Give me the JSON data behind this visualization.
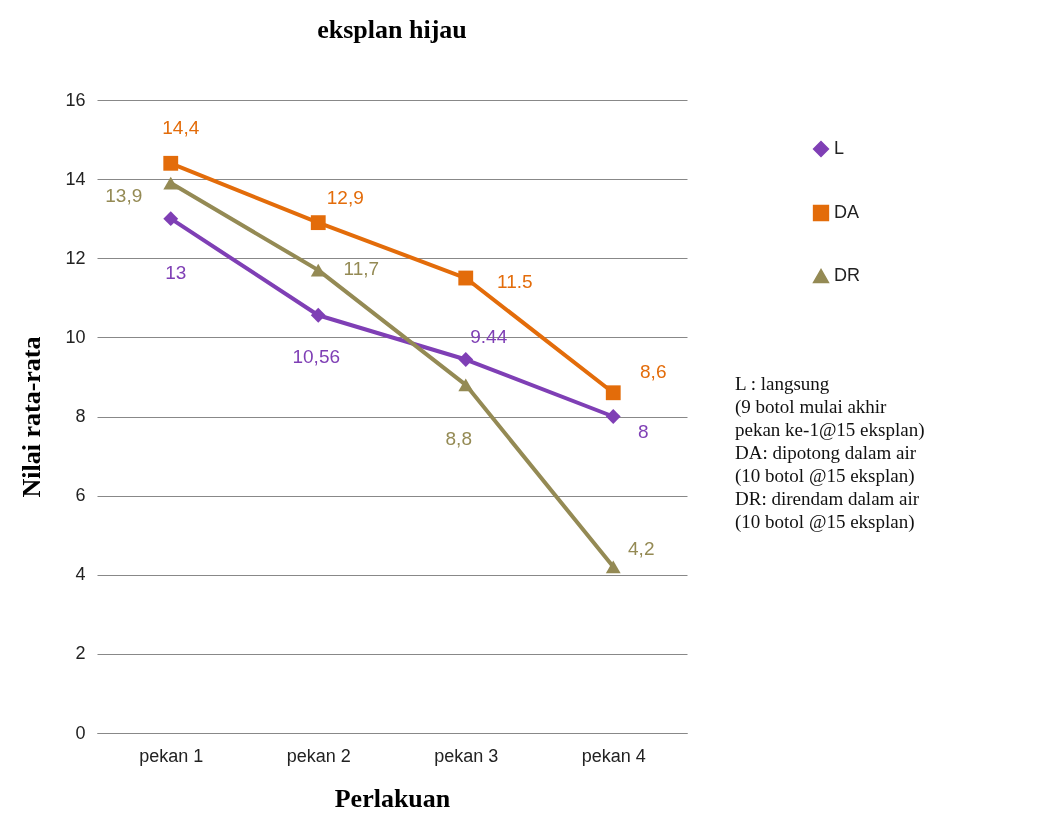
{
  "chart_data": {
    "type": "line",
    "title": "eksplan hijau",
    "xlabel": "Perlakuan",
    "ylabel": "Nilai rata-rata",
    "categories": [
      "pekan 1",
      "pekan 2",
      "pekan 3",
      "pekan 4"
    ],
    "series": [
      {
        "name": "L",
        "color": "#7f3fb5",
        "marker": "diamond",
        "values": [
          13,
          10.56,
          9.44,
          8
        ],
        "value_labels": [
          "13",
          "10,56",
          "9.44",
          "8"
        ]
      },
      {
        "name": "DA",
        "color": "#e36c0a",
        "marker": "square",
        "values": [
          14.4,
          12.9,
          11.5,
          8.6
        ],
        "value_labels": [
          "14,4",
          "12,9",
          "11.5",
          "8,6"
        ]
      },
      {
        "name": "DR",
        "color": "#948a54",
        "marker": "triangle",
        "values": [
          13.9,
          11.7,
          8.8,
          4.2
        ],
        "value_labels": [
          "13,9",
          "11,7",
          "8,8",
          "4,2"
        ]
      }
    ],
    "ylim": [
      0,
      16
    ],
    "yticks": [
      0,
      2,
      4,
      6,
      8,
      10,
      12,
      14,
      16
    ],
    "grid": "y",
    "legend": "right",
    "annotations": [
      "L   : langsung\n(9 botol mulai akhir\npekan ke-1@15 eksplan)",
      "DA: dipotong dalam air\n(10 botol @15 eksplan)",
      "DR: direndam dalam air\n(10 botol @15 eksplan)"
    ]
  }
}
